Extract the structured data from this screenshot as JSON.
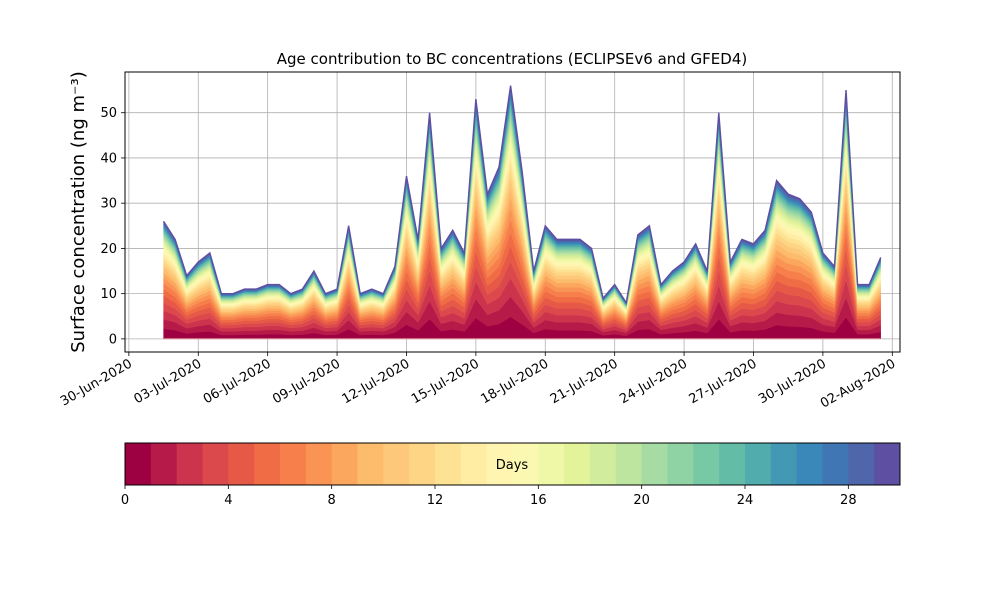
{
  "chart_data": {
    "type": "area",
    "title": "Age contribution to BC concentrations (ECLIPSEv6 and GFED4)",
    "xlabel": "",
    "ylabel": "Surface concentration (ng m⁻³)",
    "ylim": [
      -2.9,
      59
    ],
    "yticks": [
      0,
      10,
      20,
      30,
      40,
      50
    ],
    "xlim": [
      "2020-06-29T20:00",
      "2020-08-02T08:00"
    ],
    "xticks": [
      "30-Jun-2020",
      "03-Jul-2020",
      "06-Jul-2020",
      "09-Jul-2020",
      "12-Jul-2020",
      "15-Jul-2020",
      "18-Jul-2020",
      "21-Jul-2020",
      "24-Jul-2020",
      "27-Jul-2020",
      "30-Jul-2020",
      "02-Aug-2020"
    ],
    "x_start": "2020-07-01T12:00",
    "x_end": "2020-08-01T12:00",
    "grid": true,
    "series_note": "30 stacked age bands (0-30 days); total shown",
    "total_x": [
      "2020-07-01T12:00",
      "2020-07-02T00:00",
      "2020-07-02T12:00",
      "2020-07-03T00:00",
      "2020-07-03T12:00",
      "2020-07-04T00:00",
      "2020-07-04T12:00",
      "2020-07-05T00:00",
      "2020-07-05T12:00",
      "2020-07-06T00:00",
      "2020-07-06T12:00",
      "2020-07-07T00:00",
      "2020-07-07T12:00",
      "2020-07-08T00:00",
      "2020-07-08T12:00",
      "2020-07-09T00:00",
      "2020-07-09T12:00",
      "2020-07-10T00:00",
      "2020-07-10T12:00",
      "2020-07-11T00:00",
      "2020-07-11T12:00",
      "2020-07-12T00:00",
      "2020-07-12T12:00",
      "2020-07-13T00:00",
      "2020-07-13T12:00",
      "2020-07-14T00:00",
      "2020-07-14T12:00",
      "2020-07-15T00:00",
      "2020-07-15T12:00",
      "2020-07-16T00:00",
      "2020-07-16T12:00",
      "2020-07-17T00:00",
      "2020-07-17T12:00",
      "2020-07-18T00:00",
      "2020-07-18T12:00",
      "2020-07-19T00:00",
      "2020-07-19T12:00",
      "2020-07-20T00:00",
      "2020-07-20T12:00",
      "2020-07-21T00:00",
      "2020-07-21T12:00",
      "2020-07-22T00:00",
      "2020-07-22T12:00",
      "2020-07-23T00:00",
      "2020-07-23T12:00",
      "2020-07-24T00:00",
      "2020-07-24T12:00",
      "2020-07-25T00:00",
      "2020-07-25T12:00",
      "2020-07-26T00:00",
      "2020-07-26T12:00",
      "2020-07-27T00:00",
      "2020-07-27T12:00",
      "2020-07-28T00:00",
      "2020-07-28T12:00",
      "2020-07-29T00:00",
      "2020-07-29T12:00",
      "2020-07-30T00:00",
      "2020-07-30T12:00",
      "2020-07-31T00:00",
      "2020-07-31T12:00",
      "2020-08-01T00:00",
      "2020-08-01T12:00"
    ],
    "total_y": [
      26,
      22,
      14,
      17,
      19,
      10,
      10,
      11,
      11,
      12,
      12,
      10,
      11,
      15,
      10,
      11,
      25,
      10,
      11,
      10,
      16,
      36,
      22,
      50,
      20,
      24,
      19,
      53,
      32,
      38,
      56,
      37,
      15,
      25,
      22,
      22,
      22,
      20,
      9,
      12,
      8,
      23,
      25,
      12,
      15,
      17,
      21,
      15,
      50,
      17,
      22,
      21,
      24,
      35,
      32,
      31,
      28,
      19,
      16,
      55,
      12,
      12,
      18
    ],
    "total_note": "Series \"total_y\" is the top envelope of the stacked bands",
    "colorbar": {
      "label": "Days",
      "ticks": [
        0,
        4,
        8,
        12,
        16,
        20,
        24,
        28
      ],
      "range": [
        0,
        30
      ],
      "colors": [
        "#9e0142",
        "#b61a48",
        "#cc334d",
        "#dc494c",
        "#e65947",
        "#f06c45",
        "#f67f4b",
        "#f99455",
        "#fca75e",
        "#fdbb6c",
        "#fdc87a",
        "#fed584",
        "#fee293",
        "#feeda3",
        "#fff5b1",
        "#fbf8b1",
        "#eff8a6",
        "#e2f39a",
        "#d1ec9c",
        "#bde5a0",
        "#a7dba4",
        "#8fd2a4",
        "#77c8a5",
        "#63bca6",
        "#51acad",
        "#4399b3",
        "#3a87b9",
        "#4076b3",
        "#4f66ab",
        "#5e4fa2"
      ]
    }
  }
}
